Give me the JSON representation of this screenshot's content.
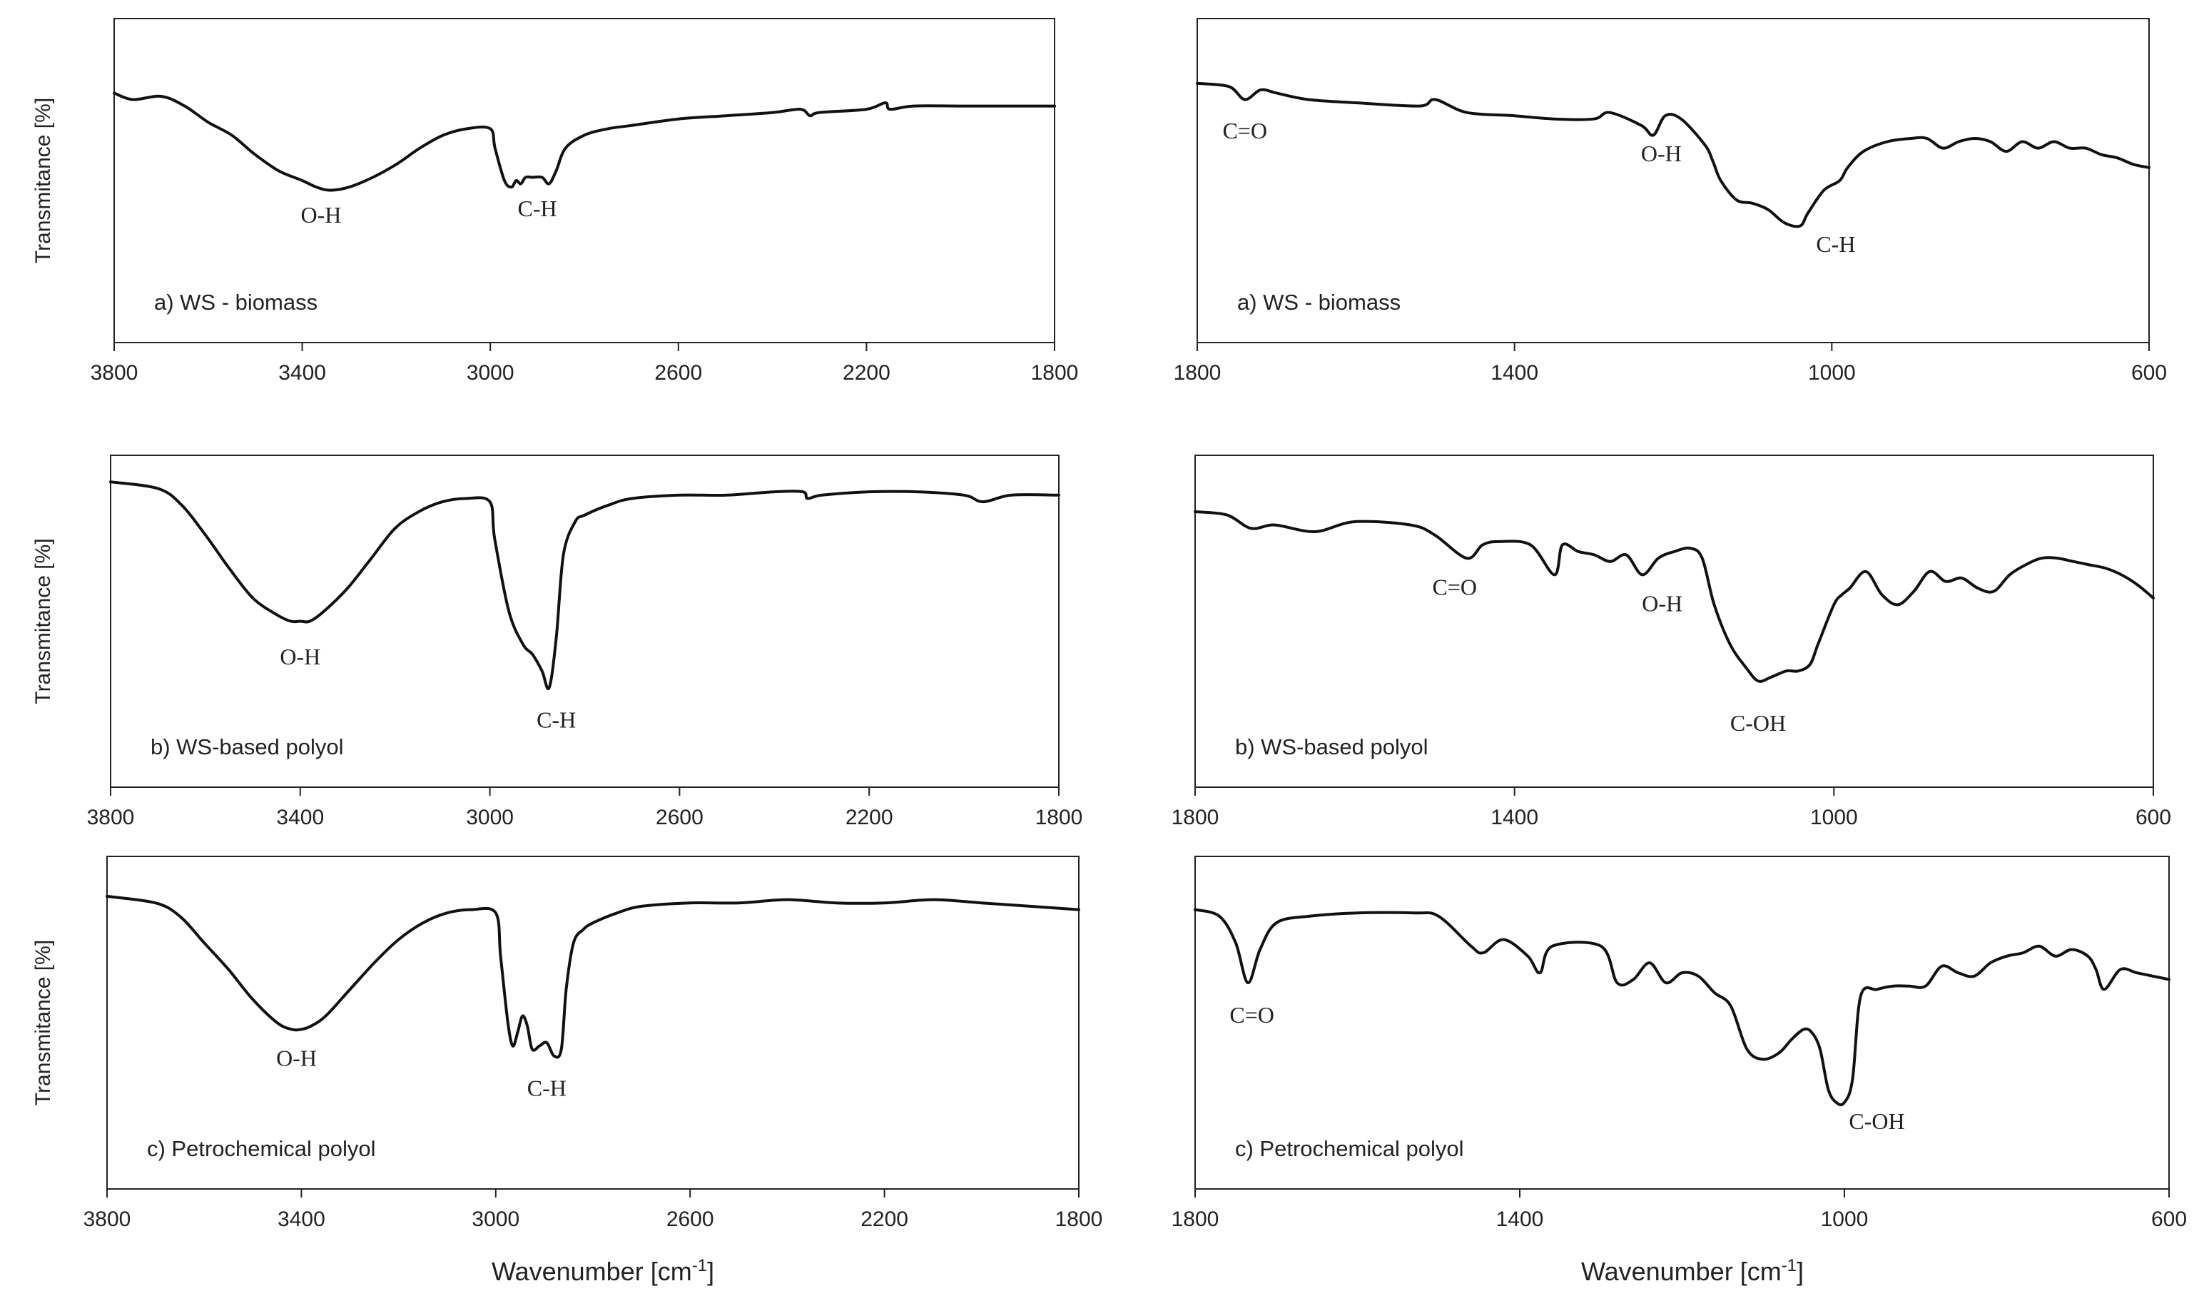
{
  "figure": {
    "xlabel_left": "Wavenumber [cm",
    "xlabel_right": "Wavenumber [cm",
    "xlabel_sup": "-1",
    "xlabel_close": "]"
  },
  "chart_data": [
    {
      "id": "a-left",
      "type": "line",
      "panel_label": "a) WS - biomass",
      "ylabel": "Transmitance [%]",
      "xlim": [
        3800,
        1800
      ],
      "ylim": [
        0,
        100
      ],
      "xticks": [
        "3800",
        "3400",
        "3000",
        "2600",
        "2200",
        "1800"
      ],
      "x": [
        3800,
        3760,
        3700,
        3650,
        3600,
        3550,
        3500,
        3450,
        3400,
        3370,
        3340,
        3300,
        3250,
        3200,
        3150,
        3100,
        3050,
        3000,
        2990,
        2970,
        2955,
        2945,
        2935,
        2925,
        2910,
        2890,
        2875,
        2860,
        2840,
        2800,
        2750,
        2700,
        2600,
        2500,
        2400,
        2340,
        2320,
        2300,
        2200,
        2160,
        2150,
        2100,
        2000,
        1900,
        1800
      ],
      "y": [
        77,
        75,
        76,
        73,
        68,
        64,
        58,
        53,
        50,
        48,
        47,
        48,
        51,
        55,
        60,
        64,
        66,
        66,
        60,
        50,
        48,
        50,
        49,
        51,
        51,
        51,
        49,
        53,
        60,
        64,
        66,
        67,
        69,
        70,
        71,
        72,
        70,
        71,
        72,
        74,
        72,
        73,
        73,
        73,
        73
      ],
      "annotations": [
        {
          "text": "O-H",
          "x": 3360,
          "y": 37
        },
        {
          "text": "C-H",
          "x": 2900,
          "y": 39
        }
      ]
    },
    {
      "id": "a-right",
      "type": "line",
      "panel_label": "a) WS - biomass",
      "ylabel": "",
      "xlim": [
        1800,
        600
      ],
      "ylim": [
        0,
        100
      ],
      "xticks": [
        "1800",
        "1400",
        "1000",
        "600"
      ],
      "x": [
        1800,
        1760,
        1740,
        1720,
        1700,
        1660,
        1600,
        1520,
        1500,
        1460,
        1400,
        1350,
        1300,
        1280,
        1240,
        1225,
        1210,
        1190,
        1160,
        1150,
        1140,
        1120,
        1100,
        1080,
        1060,
        1040,
        1030,
        1010,
        990,
        980,
        960,
        930,
        900,
        880,
        860,
        840,
        820,
        800,
        780,
        760,
        740,
        720,
        700,
        680,
        660,
        640,
        620,
        600
      ],
      "y": [
        80,
        79,
        75,
        78,
        77,
        75,
        74,
        73,
        75,
        71,
        70,
        69,
        69,
        71,
        67,
        64,
        70,
        69,
        61,
        56,
        50,
        44,
        43,
        41,
        37,
        36,
        40,
        47,
        50,
        54,
        59,
        62,
        63,
        63,
        60,
        62,
        63,
        62,
        59,
        62,
        60,
        62,
        60,
        60,
        58,
        57,
        55,
        54
      ],
      "annotations": [
        {
          "text": "C=O",
          "x": 1740,
          "y": 63
        },
        {
          "text": "O-H",
          "x": 1215,
          "y": 56
        },
        {
          "text": "C-H",
          "x": 995,
          "y": 28
        }
      ]
    },
    {
      "id": "b-left",
      "type": "line",
      "panel_label": "b) WS-based polyol",
      "ylabel": "Transmitance [%]",
      "xlim": [
        3800,
        1800
      ],
      "ylim": [
        0,
        100
      ],
      "xticks": [
        "3800",
        "3400",
        "3000",
        "2600",
        "2200",
        "1800"
      ],
      "x": [
        3800,
        3700,
        3650,
        3600,
        3550,
        3500,
        3450,
        3420,
        3400,
        3380,
        3350,
        3300,
        3250,
        3200,
        3150,
        3100,
        3050,
        3000,
        2990,
        2960,
        2930,
        2910,
        2890,
        2875,
        2860,
        2845,
        2820,
        2800,
        2750,
        2700,
        2600,
        2500,
        2400,
        2340,
        2330,
        2300,
        2200,
        2100,
        2000,
        1960,
        1900,
        1800
      ],
      "y": [
        92,
        90,
        85,
        76,
        66,
        57,
        52,
        50,
        50,
        50,
        53,
        60,
        69,
        78,
        83,
        86,
        87,
        86,
        75,
        53,
        43,
        40,
        35,
        30,
        45,
        70,
        80,
        82,
        85,
        87,
        88,
        88,
        89,
        89,
        87,
        88,
        89,
        89,
        88,
        86,
        88,
        88
      ],
      "annotations": [
        {
          "text": "O-H",
          "x": 3400,
          "y": 37
        },
        {
          "text": "C-H",
          "x": 2860,
          "y": 18
        }
      ]
    },
    {
      "id": "b-right",
      "type": "line",
      "panel_label": "b) WS-based polyol",
      "ylabel": "",
      "xlim": [
        1800,
        600
      ],
      "ylim": [
        0,
        100
      ],
      "xticks": [
        "1800",
        "1400",
        "1000",
        "600"
      ],
      "x": [
        1800,
        1760,
        1730,
        1700,
        1650,
        1600,
        1530,
        1500,
        1460,
        1440,
        1420,
        1380,
        1350,
        1340,
        1320,
        1300,
        1280,
        1260,
        1240,
        1220,
        1200,
        1180,
        1165,
        1150,
        1130,
        1110,
        1095,
        1080,
        1060,
        1045,
        1030,
        1020,
        1000,
        990,
        980,
        960,
        940,
        920,
        900,
        880,
        860,
        840,
        820,
        800,
        780,
        760,
        740,
        720,
        700,
        680,
        660,
        640,
        620,
        600
      ],
      "y": [
        83,
        82,
        78,
        79,
        77,
        80,
        79,
        76,
        69,
        73,
        74,
        73,
        64,
        73,
        71,
        70,
        68,
        70,
        64,
        69,
        71,
        72,
        69,
        55,
        43,
        36,
        32,
        33,
        35,
        35,
        37,
        43,
        55,
        58,
        60,
        65,
        58,
        55,
        59,
        65,
        62,
        63,
        60,
        59,
        64,
        67,
        69,
        69,
        68,
        67,
        66,
        64,
        61,
        57
      ],
      "annotations": [
        {
          "text": "C=O",
          "x": 1475,
          "y": 58
        },
        {
          "text": "O-H",
          "x": 1215,
          "y": 53
        },
        {
          "text": "C-OH",
          "x": 1095,
          "y": 17
        }
      ]
    },
    {
      "id": "c-left",
      "type": "line",
      "panel_label": "c) Petrochemical polyol",
      "ylabel": "Transmitance [%]",
      "xlim": [
        3800,
        1800
      ],
      "ylim": [
        0,
        100
      ],
      "xticks": [
        "3800",
        "3400",
        "3000",
        "2600",
        "2200",
        "1800"
      ],
      "x": [
        3800,
        3700,
        3650,
        3600,
        3550,
        3500,
        3450,
        3420,
        3400,
        3380,
        3350,
        3300,
        3250,
        3200,
        3150,
        3100,
        3050,
        3000,
        2990,
        2975,
        2965,
        2955,
        2945,
        2935,
        2925,
        2910,
        2895,
        2880,
        2865,
        2855,
        2840,
        2820,
        2800,
        2750,
        2700,
        2600,
        2500,
        2400,
        2300,
        2200,
        2100,
        2000,
        1900,
        1800
      ],
      "y": [
        88,
        86,
        82,
        74,
        66,
        57,
        50,
        48,
        48,
        49,
        52,
        60,
        68,
        75,
        80,
        83,
        84,
        83,
        70,
        50,
        43,
        47,
        52,
        49,
        42,
        43,
        44,
        40,
        42,
        60,
        74,
        78,
        80,
        83,
        85,
        86,
        86,
        87,
        86,
        86,
        87,
        86,
        85,
        84
      ],
      "annotations": [
        {
          "text": "O-H",
          "x": 3410,
          "y": 37
        },
        {
          "text": "C-H",
          "x": 2895,
          "y": 28
        }
      ]
    },
    {
      "id": "c-right",
      "type": "line",
      "panel_label": "c) Petrochemical polyol",
      "ylabel": "",
      "xlim": [
        1800,
        600
      ],
      "ylim": [
        0,
        100
      ],
      "xticks": [
        "1800",
        "1400",
        "1000",
        "600"
      ],
      "x": [
        1800,
        1770,
        1750,
        1735,
        1720,
        1700,
        1660,
        1600,
        1530,
        1500,
        1460,
        1445,
        1420,
        1390,
        1375,
        1360,
        1300,
        1280,
        1260,
        1240,
        1220,
        1200,
        1180,
        1160,
        1140,
        1120,
        1100,
        1080,
        1065,
        1050,
        1040,
        1030,
        1020,
        1010,
        1000,
        990,
        980,
        960,
        940,
        920,
        900,
        880,
        860,
        840,
        820,
        800,
        780,
        760,
        740,
        720,
        700,
        690,
        680,
        660,
        640,
        620,
        600
      ],
      "y": [
        84,
        82,
        74,
        62,
        72,
        80,
        82,
        83,
        83,
        82,
        73,
        71,
        75,
        70,
        65,
        73,
        73,
        62,
        63,
        68,
        62,
        65,
        64,
        59,
        55,
        42,
        39,
        41,
        45,
        48,
        47,
        42,
        30,
        26,
        26,
        33,
        58,
        60,
        61,
        61,
        61,
        67,
        65,
        64,
        68,
        70,
        71,
        73,
        70,
        72,
        70,
        66,
        60,
        66,
        65,
        64,
        63
      ],
      "annotations": [
        {
          "text": "C=O",
          "x": 1730,
          "y": 50
        },
        {
          "text": "C-OH",
          "x": 960,
          "y": 18
        }
      ]
    }
  ]
}
